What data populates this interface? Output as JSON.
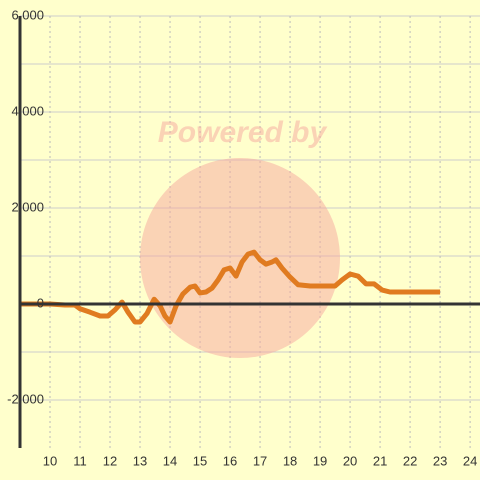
{
  "chart_data": {
    "type": "line",
    "watermark": "Powered by",
    "x": [
      9,
      10,
      10.5,
      10.83,
      11,
      11.33,
      11.67,
      11.93,
      12.17,
      12.4,
      12.6,
      12.83,
      13,
      13.23,
      13.47,
      13.67,
      13.83,
      14,
      14.2,
      14.43,
      14.67,
      14.83,
      15,
      15.2,
      15.4,
      15.6,
      15.8,
      16,
      16.2,
      16.4,
      16.6,
      16.8,
      17,
      17.2,
      17.4,
      17.53,
      17.73,
      18,
      18.27,
      18.67,
      19,
      19.5,
      19.73,
      20,
      20.27,
      20.53,
      20.8,
      21.07,
      21.33,
      22,
      23
    ],
    "values": [
      0,
      0,
      -20,
      -20,
      -100,
      -170,
      -250,
      -250,
      -120,
      40,
      -170,
      -375,
      -375,
      -200,
      100,
      -40,
      -250,
      -375,
      -40,
      210,
      350,
      375,
      230,
      250,
      330,
      500,
      710,
      750,
      580,
      875,
      1040,
      1080,
      920,
      830,
      875,
      920,
      750,
      560,
      400,
      375,
      375,
      375,
      500,
      625,
      580,
      420,
      420,
      290,
      250,
      250,
      250
    ],
    "color": "#e07b20",
    "xlim": [
      9,
      24.33
    ],
    "xticks": [
      10,
      11,
      12,
      13,
      14,
      15,
      16,
      17,
      18,
      19,
      20,
      21,
      22,
      23,
      24
    ],
    "ylim": [
      -3000,
      6000
    ],
    "yticks": [
      {
        "value": -2000,
        "label": "-2,000"
      },
      0,
      {
        "value": 2000,
        "label": "2,000"
      },
      {
        "value": 4000,
        "label": "4,000"
      },
      {
        "value": 6000,
        "label": "6,000"
      }
    ],
    "y_minor_ticks": [
      -1000,
      1000,
      3000,
      5000
    ],
    "grid": true
  }
}
